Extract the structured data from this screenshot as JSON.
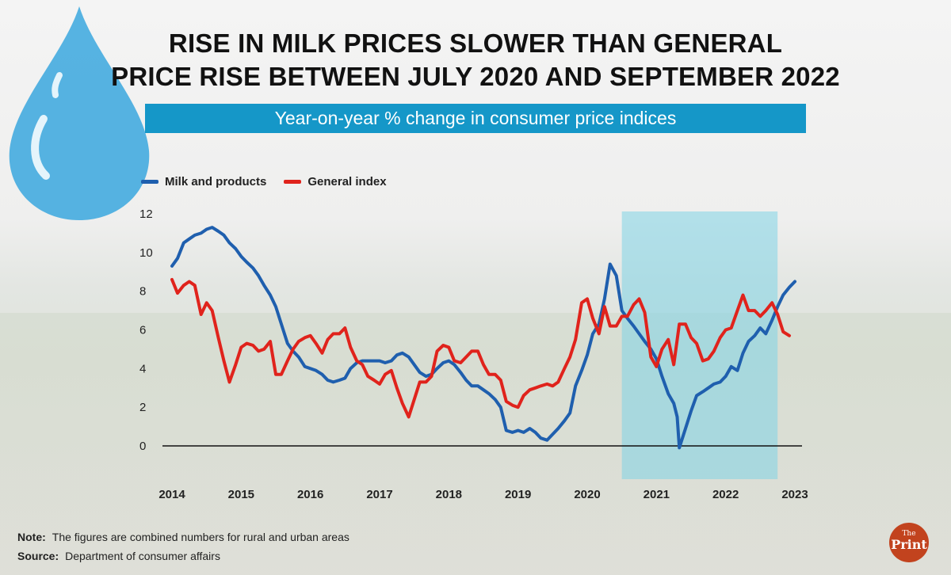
{
  "title_line1": "RISE IN MILK PRICES SLOWER THAN GENERAL",
  "title_line2": "PRICE RISE BETWEEN JULY 2020 AND SEPTEMBER 2022",
  "subtitle": "Year-on-year % change in consumer price indices",
  "footer": {
    "note_label": "Note:",
    "note_text": "The figures are combined numbers for rural and urban areas",
    "source_label": "Source:",
    "source_text": "Department of consumer affairs"
  },
  "logo": {
    "small": "The",
    "main": "Print"
  },
  "colors": {
    "milk": "#1f5fae",
    "general": "#e0231c",
    "highlight": "#7fd3e6",
    "subtitle_bg": "#1597c8",
    "logo": "#c2431e"
  },
  "chart_data": {
    "type": "line",
    "title": "RISE IN MILK PRICES SLOWER THAN GENERAL PRICE RISE BETWEEN JULY 2020 AND SEPTEMBER 2022",
    "subtitle": "Year-on-year % change in consumer price indices",
    "xlabel": "",
    "ylabel": "",
    "x_ticks": [
      "2014",
      "2015",
      "2016",
      "2017",
      "2018",
      "2019",
      "2020",
      "2021",
      "2022",
      "2023"
    ],
    "y_ticks": [
      "0",
      "2",
      "4",
      "6",
      "8",
      "10",
      "12"
    ],
    "xlim": [
      2014.0,
      2023.0
    ],
    "ylim": [
      0,
      12
    ],
    "grid": false,
    "legend": "top-left",
    "highlight": {
      "from": 2020.5,
      "to": 2022.75,
      "label": "July 2020 - September 2022"
    },
    "series": [
      {
        "name": "Milk and products",
        "color": "#1f5fae",
        "points": [
          [
            2014.0,
            9.3
          ],
          [
            2014.08,
            9.7
          ],
          [
            2014.17,
            10.5
          ],
          [
            2014.25,
            10.7
          ],
          [
            2014.33,
            10.9
          ],
          [
            2014.42,
            11.0
          ],
          [
            2014.5,
            11.2
          ],
          [
            2014.58,
            11.3
          ],
          [
            2014.67,
            11.1
          ],
          [
            2014.75,
            10.9
          ],
          [
            2014.83,
            10.5
          ],
          [
            2014.92,
            10.2
          ],
          [
            2015.0,
            9.8
          ],
          [
            2015.08,
            9.5
          ],
          [
            2015.17,
            9.2
          ],
          [
            2015.25,
            8.8
          ],
          [
            2015.33,
            8.3
          ],
          [
            2015.42,
            7.8
          ],
          [
            2015.5,
            7.2
          ],
          [
            2015.58,
            6.3
          ],
          [
            2015.67,
            5.3
          ],
          [
            2015.75,
            4.9
          ],
          [
            2015.83,
            4.6
          ],
          [
            2015.92,
            4.1
          ],
          [
            2016.0,
            4.0
          ],
          [
            2016.08,
            3.9
          ],
          [
            2016.17,
            3.7
          ],
          [
            2016.25,
            3.4
          ],
          [
            2016.33,
            3.3
          ],
          [
            2016.42,
            3.4
          ],
          [
            2016.5,
            3.5
          ],
          [
            2016.58,
            4.0
          ],
          [
            2016.67,
            4.3
          ],
          [
            2016.75,
            4.4
          ],
          [
            2016.83,
            4.4
          ],
          [
            2016.92,
            4.4
          ],
          [
            2017.0,
            4.4
          ],
          [
            2017.08,
            4.3
          ],
          [
            2017.17,
            4.4
          ],
          [
            2017.25,
            4.7
          ],
          [
            2017.33,
            4.8
          ],
          [
            2017.42,
            4.6
          ],
          [
            2017.5,
            4.2
          ],
          [
            2017.58,
            3.8
          ],
          [
            2017.67,
            3.6
          ],
          [
            2017.75,
            3.7
          ],
          [
            2017.83,
            4.0
          ],
          [
            2017.92,
            4.3
          ],
          [
            2018.0,
            4.4
          ],
          [
            2018.08,
            4.2
          ],
          [
            2018.17,
            3.8
          ],
          [
            2018.25,
            3.4
          ],
          [
            2018.33,
            3.1
          ],
          [
            2018.42,
            3.1
          ],
          [
            2018.5,
            2.9
          ],
          [
            2018.58,
            2.7
          ],
          [
            2018.67,
            2.4
          ],
          [
            2018.75,
            2.0
          ],
          [
            2018.83,
            0.8
          ],
          [
            2018.92,
            0.7
          ],
          [
            2019.0,
            0.8
          ],
          [
            2019.08,
            0.7
          ],
          [
            2019.17,
            0.9
          ],
          [
            2019.25,
            0.7
          ],
          [
            2019.33,
            0.4
          ],
          [
            2019.42,
            0.3
          ],
          [
            2019.5,
            0.6
          ],
          [
            2019.58,
            0.9
          ],
          [
            2019.67,
            1.3
          ],
          [
            2019.75,
            1.7
          ],
          [
            2019.83,
            3.1
          ],
          [
            2019.92,
            3.9
          ],
          [
            2020.0,
            4.7
          ],
          [
            2020.08,
            5.8
          ],
          [
            2020.17,
            6.3
          ],
          [
            2020.25,
            7.6
          ],
          [
            2020.33,
            9.4
          ],
          [
            2020.42,
            8.8
          ],
          [
            2020.5,
            7.0
          ],
          [
            2020.58,
            6.6
          ],
          [
            2020.67,
            6.2
          ],
          [
            2020.75,
            5.8
          ],
          [
            2020.83,
            5.4
          ],
          [
            2020.92,
            5.0
          ],
          [
            2021.0,
            4.5
          ],
          [
            2021.08,
            3.6
          ],
          [
            2021.17,
            2.7
          ],
          [
            2021.25,
            2.2
          ],
          [
            2021.3,
            1.5
          ],
          [
            2021.33,
            -0.1
          ],
          [
            2021.42,
            0.9
          ],
          [
            2021.5,
            1.8
          ],
          [
            2021.58,
            2.6
          ],
          [
            2021.67,
            2.8
          ],
          [
            2021.75,
            3.0
          ],
          [
            2021.83,
            3.2
          ],
          [
            2021.92,
            3.3
          ],
          [
            2022.0,
            3.6
          ],
          [
            2022.08,
            4.1
          ],
          [
            2022.17,
            3.9
          ],
          [
            2022.25,
            4.8
          ],
          [
            2022.33,
            5.4
          ],
          [
            2022.42,
            5.7
          ],
          [
            2022.5,
            6.1
          ],
          [
            2022.58,
            5.8
          ],
          [
            2022.67,
            6.5
          ],
          [
            2022.75,
            7.2
          ],
          [
            2022.83,
            7.8
          ],
          [
            2022.92,
            8.2
          ],
          [
            2023.0,
            8.5
          ]
        ]
      },
      {
        "name": "General index",
        "color": "#e0231c",
        "points": [
          [
            2014.0,
            8.6
          ],
          [
            2014.08,
            7.9
          ],
          [
            2014.17,
            8.3
          ],
          [
            2014.25,
            8.5
          ],
          [
            2014.33,
            8.3
          ],
          [
            2014.42,
            6.8
          ],
          [
            2014.5,
            7.4
          ],
          [
            2014.58,
            7.0
          ],
          [
            2014.67,
            5.6
          ],
          [
            2014.75,
            4.4
          ],
          [
            2014.83,
            3.3
          ],
          [
            2014.92,
            4.2
          ],
          [
            2015.0,
            5.1
          ],
          [
            2015.08,
            5.3
          ],
          [
            2015.17,
            5.2
          ],
          [
            2015.25,
            4.9
          ],
          [
            2015.33,
            5.0
          ],
          [
            2015.42,
            5.4
          ],
          [
            2015.5,
            3.7
          ],
          [
            2015.58,
            3.7
          ],
          [
            2015.67,
            4.4
          ],
          [
            2015.75,
            5.0
          ],
          [
            2015.83,
            5.4
          ],
          [
            2015.92,
            5.6
          ],
          [
            2016.0,
            5.7
          ],
          [
            2016.08,
            5.3
          ],
          [
            2016.17,
            4.8
          ],
          [
            2016.25,
            5.5
          ],
          [
            2016.33,
            5.8
          ],
          [
            2016.42,
            5.8
          ],
          [
            2016.5,
            6.1
          ],
          [
            2016.58,
            5.1
          ],
          [
            2016.67,
            4.4
          ],
          [
            2016.75,
            4.2
          ],
          [
            2016.83,
            3.6
          ],
          [
            2016.92,
            3.4
          ],
          [
            2017.0,
            3.2
          ],
          [
            2017.08,
            3.7
          ],
          [
            2017.17,
            3.9
          ],
          [
            2017.25,
            3.0
          ],
          [
            2017.33,
            2.2
          ],
          [
            2017.42,
            1.5
          ],
          [
            2017.5,
            2.4
          ],
          [
            2017.58,
            3.3
          ],
          [
            2017.67,
            3.3
          ],
          [
            2017.75,
            3.6
          ],
          [
            2017.83,
            4.9
          ],
          [
            2017.92,
            5.2
          ],
          [
            2018.0,
            5.1
          ],
          [
            2018.08,
            4.4
          ],
          [
            2018.17,
            4.3
          ],
          [
            2018.25,
            4.6
          ],
          [
            2018.33,
            4.9
          ],
          [
            2018.42,
            4.9
          ],
          [
            2018.5,
            4.2
          ],
          [
            2018.58,
            3.7
          ],
          [
            2018.67,
            3.7
          ],
          [
            2018.75,
            3.4
          ],
          [
            2018.83,
            2.3
          ],
          [
            2018.92,
            2.1
          ],
          [
            2019.0,
            2.0
          ],
          [
            2019.08,
            2.6
          ],
          [
            2019.17,
            2.9
          ],
          [
            2019.25,
            3.0
          ],
          [
            2019.33,
            3.1
          ],
          [
            2019.42,
            3.2
          ],
          [
            2019.5,
            3.1
          ],
          [
            2019.58,
            3.3
          ],
          [
            2019.67,
            4.0
          ],
          [
            2019.75,
            4.6
          ],
          [
            2019.83,
            5.5
          ],
          [
            2019.92,
            7.4
          ],
          [
            2020.0,
            7.6
          ],
          [
            2020.08,
            6.6
          ],
          [
            2020.17,
            5.8
          ],
          [
            2020.25,
            7.2
          ],
          [
            2020.33,
            6.2
          ],
          [
            2020.42,
            6.2
          ],
          [
            2020.5,
            6.7
          ],
          [
            2020.58,
            6.7
          ],
          [
            2020.67,
            7.3
          ],
          [
            2020.75,
            7.6
          ],
          [
            2020.83,
            6.9
          ],
          [
            2020.92,
            4.6
          ],
          [
            2021.0,
            4.1
          ],
          [
            2021.08,
            5.0
          ],
          [
            2021.17,
            5.5
          ],
          [
            2021.25,
            4.2
          ],
          [
            2021.33,
            6.3
          ],
          [
            2021.42,
            6.3
          ],
          [
            2021.5,
            5.6
          ],
          [
            2021.58,
            5.3
          ],
          [
            2021.67,
            4.4
          ],
          [
            2021.75,
            4.5
          ],
          [
            2021.83,
            4.9
          ],
          [
            2021.92,
            5.6
          ],
          [
            2022.0,
            6.0
          ],
          [
            2022.08,
            6.1
          ],
          [
            2022.17,
            7.0
          ],
          [
            2022.25,
            7.8
          ],
          [
            2022.33,
            7.0
          ],
          [
            2022.42,
            7.0
          ],
          [
            2022.5,
            6.7
          ],
          [
            2022.58,
            7.0
          ],
          [
            2022.67,
            7.4
          ],
          [
            2022.75,
            6.8
          ],
          [
            2022.83,
            5.9
          ],
          [
            2022.92,
            5.7
          ]
        ]
      }
    ]
  }
}
